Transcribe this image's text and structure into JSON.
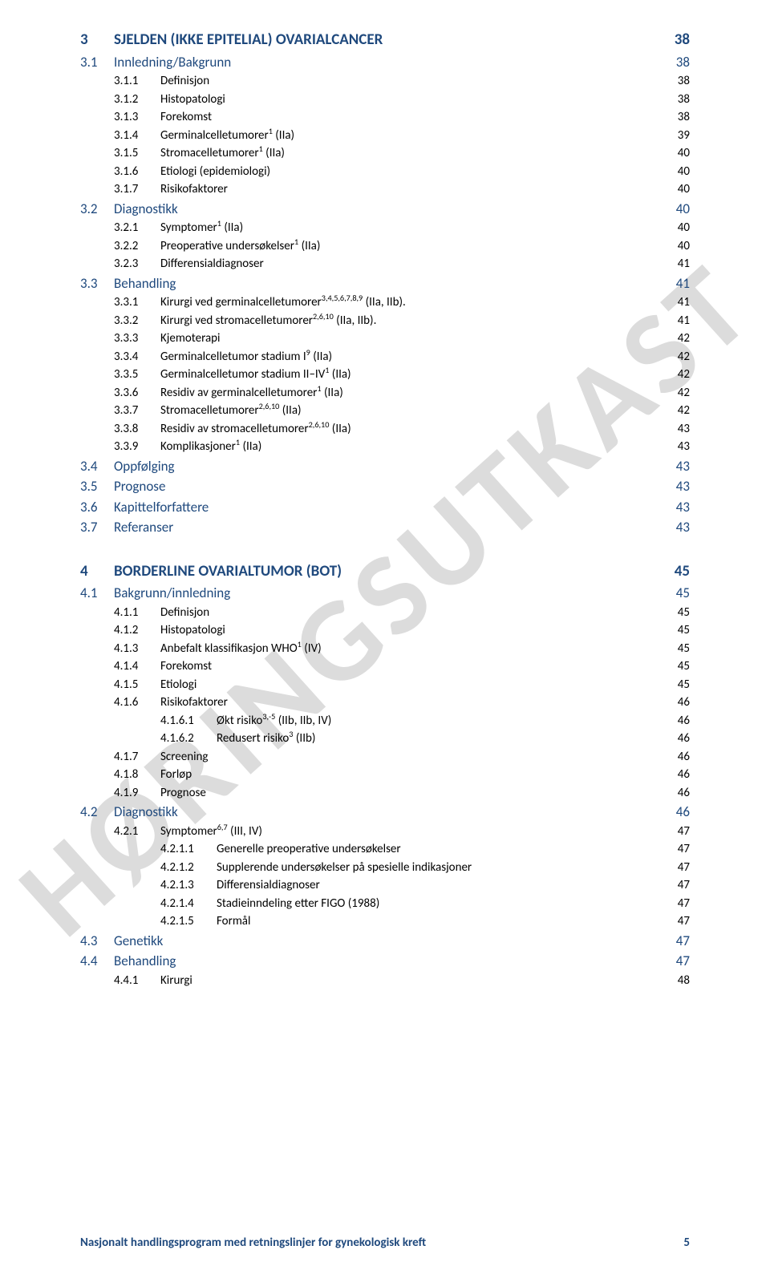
{
  "watermark": "HØRINGSUTKAST",
  "footer": {
    "text": "Nasjonalt handlingsprogram med retningslinjer for gynekologisk kreft",
    "pagenum": "5"
  },
  "colors": {
    "heading_blue": "#1f497d",
    "body_black": "#000000",
    "watermark_gray": "#dcdcdc",
    "background": "#ffffff"
  },
  "toc": [
    {
      "lvl": "h1",
      "num": "3",
      "label": "SJELDEN (IKKE EPITELIAL) OVARIALCANCER",
      "page": "38"
    },
    {
      "lvl": "h2",
      "num": "3.1",
      "label": "Innledning/Bakgrunn",
      "page": "38"
    },
    {
      "lvl": "h3",
      "num": "3.1.1",
      "label": "Definisjon",
      "page": "38"
    },
    {
      "lvl": "h3",
      "num": "3.1.2",
      "label": "Histopatologi",
      "page": "38"
    },
    {
      "lvl": "h3",
      "num": "3.1.3",
      "label": "Forekomst",
      "page": "38"
    },
    {
      "lvl": "h3",
      "num": "3.1.4",
      "label": "Germinalcelletumorer",
      "sup": "1",
      "tail": " (IIa)",
      "page": "39"
    },
    {
      "lvl": "h3",
      "num": "3.1.5",
      "label": "Stromacelletumorer",
      "sup": "1",
      "tail": " (IIa)",
      "page": "40"
    },
    {
      "lvl": "h3",
      "num": "3.1.6",
      "label": "Etiologi (epidemiologi)",
      "page": "40"
    },
    {
      "lvl": "h3",
      "num": "3.1.7",
      "label": "Risikofaktorer",
      "page": "40"
    },
    {
      "lvl": "h2",
      "num": "3.2",
      "label": "Diagnostikk",
      "page": "40"
    },
    {
      "lvl": "h3",
      "num": "3.2.1",
      "label": "Symptomer",
      "sup": "1",
      "tail": " (IIa)",
      "page": "40"
    },
    {
      "lvl": "h3",
      "num": "3.2.2",
      "label": "Preoperative undersøkelser",
      "sup": "1",
      "tail": " (IIa)",
      "page": "40"
    },
    {
      "lvl": "h3",
      "num": "3.2.3",
      "label": "Differensialdiagnoser",
      "page": "41"
    },
    {
      "lvl": "h2",
      "num": "3.3",
      "label": "Behandling",
      "page": "41"
    },
    {
      "lvl": "h3",
      "num": "3.3.1",
      "label": "Kirurgi ved germinalcelletumorer",
      "sup": "3,4,5,6,7,8,9",
      "tail": " (IIa, IIb).",
      "page": "41"
    },
    {
      "lvl": "h3",
      "num": "3.3.2",
      "label": "Kirurgi ved stromacelletumorer",
      "sup": "2,6,10",
      "tail": " (IIa, IIb).",
      "page": "41"
    },
    {
      "lvl": "h3",
      "num": "3.3.3",
      "label": "Kjemoterapi",
      "page": "42"
    },
    {
      "lvl": "h3",
      "num": "3.3.4",
      "label": "Germinalcelletumor stadium I",
      "sup": "9",
      "tail": " (IIa)",
      "page": "42"
    },
    {
      "lvl": "h3",
      "num": "3.3.5",
      "label": "Germinalcelletumor stadium II–IV",
      "sup": "1",
      "tail": " (IIa)",
      "page": "42"
    },
    {
      "lvl": "h3",
      "num": "3.3.6",
      "label": "Residiv av germinalcelletumorer",
      "sup": "1",
      "tail": " (IIa)",
      "page": "42"
    },
    {
      "lvl": "h3",
      "num": "3.3.7",
      "label": "Stromacelletumorer",
      "sup": "2,6,10",
      "tail": " (IIa)",
      "page": "42"
    },
    {
      "lvl": "h3",
      "num": "3.3.8",
      "label": "Residiv av stromacelletumorer",
      "sup": "2,6,10",
      "tail": " (IIa)",
      "page": "43"
    },
    {
      "lvl": "h3",
      "num": "3.3.9",
      "label": "Komplikasjoner",
      "sup": "1",
      "tail": " (IIa)",
      "page": "43"
    },
    {
      "lvl": "h2",
      "num": "3.4",
      "label": "Oppfølging",
      "page": "43"
    },
    {
      "lvl": "h2",
      "num": "3.5",
      "label": "Prognose",
      "page": "43"
    },
    {
      "lvl": "h2",
      "num": "3.6",
      "label": "Kapittelforfattere",
      "page": "43"
    },
    {
      "lvl": "h2",
      "num": "3.7",
      "label": "Referanser",
      "page": "43"
    },
    {
      "lvl": "h1b",
      "num": "4",
      "label": "BORDERLINE OVARIALTUMOR (BOT)",
      "page": "45"
    },
    {
      "lvl": "h2",
      "num": "4.1",
      "label": "Bakgrunn/innledning",
      "page": "45"
    },
    {
      "lvl": "h3",
      "num": "4.1.1",
      "label": "Definisjon",
      "page": "45"
    },
    {
      "lvl": "h3",
      "num": "4.1.2",
      "label": "Histopatologi",
      "page": "45"
    },
    {
      "lvl": "h3",
      "num": "4.1.3",
      "label": "Anbefalt klassifikasjon WHO",
      "sup": "1",
      "tail": " (IV)",
      "page": "45"
    },
    {
      "lvl": "h3",
      "num": "4.1.4",
      "label": "Forekomst",
      "page": "45"
    },
    {
      "lvl": "h3",
      "num": "4.1.5",
      "label": "Etiologi",
      "page": "45"
    },
    {
      "lvl": "h3",
      "num": "4.1.6",
      "label": "Risikofaktorer",
      "page": "46"
    },
    {
      "lvl": "h4",
      "num": "4.1.6.1",
      "label": "Økt risiko",
      "sup": "3,-5",
      "tail": " (IIb, IIb, IV)",
      "page": "46"
    },
    {
      "lvl": "h4",
      "num": "4.1.6.2",
      "label": "Redusert risiko",
      "sup": "3",
      "tail": " (IIb)",
      "page": "46"
    },
    {
      "lvl": "h3",
      "num": "4.1.7",
      "label": "Screening",
      "page": "46"
    },
    {
      "lvl": "h3",
      "num": "4.1.8",
      "label": "Forløp",
      "page": "46"
    },
    {
      "lvl": "h3",
      "num": "4.1.9",
      "label": "Prognose",
      "page": "46"
    },
    {
      "lvl": "h2",
      "num": "4.2",
      "label": "Diagnostikk",
      "page": "46"
    },
    {
      "lvl": "h3",
      "num": "4.2.1",
      "label": "Symptomer",
      "sup": "6,7",
      "tail": " (III, IV)",
      "page": "47"
    },
    {
      "lvl": "h4",
      "num": "4.2.1.1",
      "label": "Generelle preoperative undersøkelser",
      "page": "47"
    },
    {
      "lvl": "h4",
      "num": "4.2.1.2",
      "label": "Supplerende undersøkelser på spesielle indikasjoner",
      "page": "47"
    },
    {
      "lvl": "h4",
      "num": "4.2.1.3",
      "label": "Differensialdiagnoser",
      "page": "47"
    },
    {
      "lvl": "h4",
      "num": "4.2.1.4",
      "label": "Stadieinndeling etter FIGO (1988)",
      "page": "47"
    },
    {
      "lvl": "h4",
      "num": "4.2.1.5",
      "label": "Formål",
      "page": "47"
    },
    {
      "lvl": "h2",
      "num": "4.3",
      "label": "Genetikk",
      "page": "47"
    },
    {
      "lvl": "h2",
      "num": "4.4",
      "label": "Behandling",
      "page": "47"
    },
    {
      "lvl": "h3",
      "num": "4.4.1",
      "label": "Kirurgi",
      "page": "48"
    }
  ]
}
